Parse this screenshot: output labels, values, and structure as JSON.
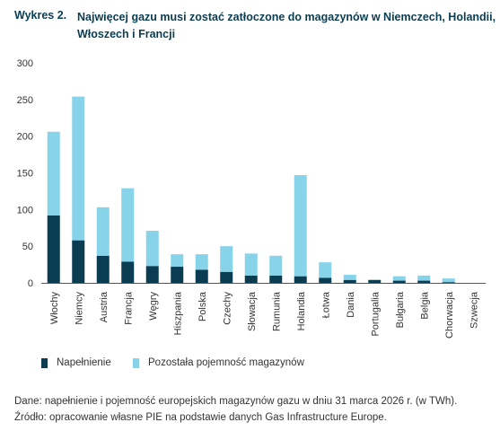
{
  "title": {
    "prefix": "Wykres 2.",
    "text": "Najwięcej gazu musi zostać zatłoczone do magazynów w Niemczech, Holandii, Włoszech i Francji"
  },
  "legend": {
    "filled": "Napełnienie",
    "remaining": "Pozostała pojemność magazynów"
  },
  "colors": {
    "filled": "#0b3d52",
    "remaining": "#86d3ea"
  },
  "footer": {
    "source_note": "Dane: napełnienie i pojemność europejskich magazynów gazu w dniu 31 marca 2026 r. (w TWh).",
    "source": "Źródło: opracowanie własne PIE na podstawie danych Gas Infrastructure Europe."
  },
  "chart_data": {
    "type": "bar",
    "stacked": true,
    "categories": [
      "Włochy",
      "Niemcy",
      "Austria",
      "Francja",
      "Węgry",
      "Hiszpania",
      "Polska",
      "Czechy",
      "Słowacja",
      "Rumunia",
      "Holandia",
      "Łotwa",
      "Dania",
      "Portugalia",
      "Bułgaria",
      "Belgia",
      "Chorwacja",
      "Szwecja"
    ],
    "series": [
      {
        "name": "Napełnienie",
        "values": [
          92,
          58,
          37,
          29,
          23,
          22,
          18,
          15,
          10,
          10,
          9,
          7,
          4,
          4,
          3,
          3,
          1,
          0
        ]
      },
      {
        "name": "Pozostała pojemność magazynów",
        "values": [
          114,
          196,
          66,
          100,
          48,
          17,
          21,
          35,
          30,
          27,
          138,
          21,
          7,
          0,
          6,
          7,
          5,
          0
        ]
      }
    ],
    "ylim": [
      0,
      300
    ],
    "yticks": [
      0,
      50,
      100,
      150,
      200,
      250,
      300
    ],
    "grid": false,
    "legend_position": "bottom"
  }
}
